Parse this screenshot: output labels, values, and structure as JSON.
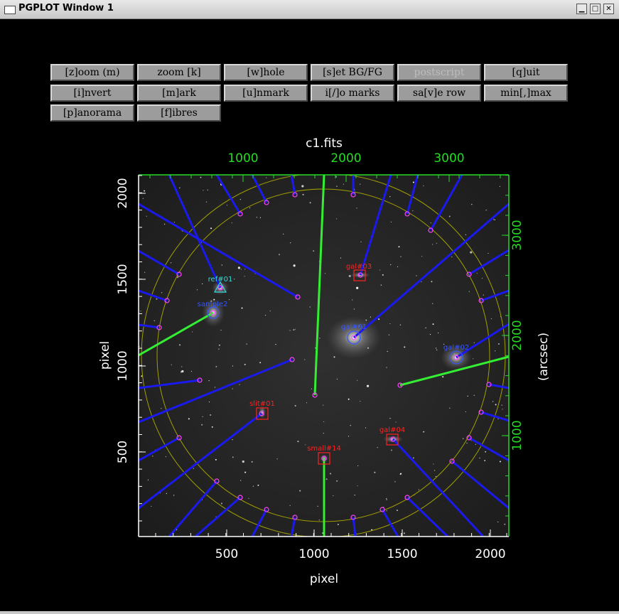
{
  "window": {
    "title": "PGPLOT Window 1",
    "controls": {
      "minimize": "▁",
      "maximize": "□",
      "close": "✕"
    }
  },
  "buttons": [
    {
      "label": "[z]oom (m)",
      "enabled": true
    },
    {
      "label": "zoom [k]",
      "enabled": true
    },
    {
      "label": "[w]hole",
      "enabled": true
    },
    {
      "label": "[s]et BG/FG",
      "enabled": true
    },
    {
      "label": "postscript",
      "enabled": false
    },
    {
      "label": "[q]uit",
      "enabled": true
    },
    {
      "label": "[i]nvert",
      "enabled": true
    },
    {
      "label": "[m]ark",
      "enabled": true
    },
    {
      "label": "[u]nmark",
      "enabled": true
    },
    {
      "label": "i[/]o marks",
      "enabled": true
    },
    {
      "label": "sa[v]e row",
      "enabled": true
    },
    {
      "label": "min[,]max",
      "enabled": true
    },
    {
      "label": "[p]anorama",
      "enabled": true
    },
    {
      "label": "[f]ibres",
      "enabled": true
    }
  ],
  "plot": {
    "title": "c1.fits",
    "xlabel": "pixel",
    "ylabel": "pixel",
    "y2label": "(arcsec)",
    "xticks": [
      "500",
      "1000",
      "1500",
      "2000"
    ],
    "yticks": [
      "500",
      "1000",
      "1500",
      "2000"
    ],
    "x2ticks": [
      "1000",
      "2000",
      "3000"
    ],
    "y2ticks": [
      "1000",
      "2000",
      "3000"
    ],
    "colors": {
      "axes": "#ffffff",
      "secondary_axes": "#22dd22",
      "fibre_blue": "#1a1aee",
      "fibre_green": "#33ee33",
      "marker": "#ff44ff",
      "label_red": "#ff2222",
      "label_blue": "#3355ff",
      "label_cyan": "#33dddd",
      "field_circle": "#a0a000"
    }
  },
  "objects": [
    {
      "name": "ref#01",
      "color": "cyan"
    },
    {
      "name": "sample2",
      "color": "blue"
    },
    {
      "name": "gal#03",
      "color": "red"
    },
    {
      "name": "gal#01",
      "color": "blue"
    },
    {
      "name": "gal#02",
      "color": "blue"
    },
    {
      "name": "slit#01",
      "color": "red"
    },
    {
      "name": "gal#04",
      "color": "red"
    },
    {
      "name": "small#14",
      "color": "red"
    }
  ]
}
